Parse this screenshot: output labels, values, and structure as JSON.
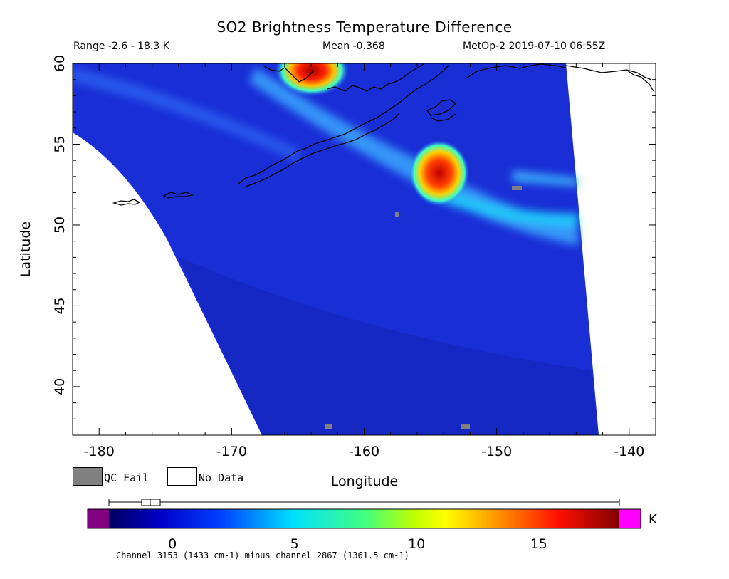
{
  "title": "SO2 Brightness Temperature Difference",
  "range_text": "Range -2.6 - 18.3 K",
  "mean_text": "Mean -0.368",
  "source_text": "MetOp-2 2019-07-10 06:55Z",
  "axes": {
    "xlabel": "Longitude",
    "ylabel": "Latitude",
    "x_ticks": [
      "-180",
      "-170",
      "-160",
      "-150",
      "-140"
    ],
    "y_ticks": [
      "40",
      "45",
      "50",
      "55",
      "60"
    ],
    "x_range": [
      -182,
      -138
    ],
    "y_range": [
      37,
      60
    ]
  },
  "legend": {
    "qc_fail": "QC Fail",
    "no_data": "No Data",
    "qc_color": "#808080"
  },
  "colorbar": {
    "unit": "K",
    "ticks": [
      "0",
      "5",
      "10",
      "15"
    ],
    "range": [
      -2.6,
      18.3
    ],
    "under_color": "#800080",
    "over_color": "#ff00ff",
    "colors": [
      "#000080",
      "#0000ff",
      "#00a0ff",
      "#00ffff",
      "#80ff80",
      "#ffff00",
      "#ff8000",
      "#ff0000",
      "#800000"
    ]
  },
  "footnote": "Channel 3153 (1433 cm-1) minus channel 2867 (1361.5 cm-1)",
  "colors": {
    "background_field": "#1a2ed6",
    "plume_core": "#c80000"
  }
}
